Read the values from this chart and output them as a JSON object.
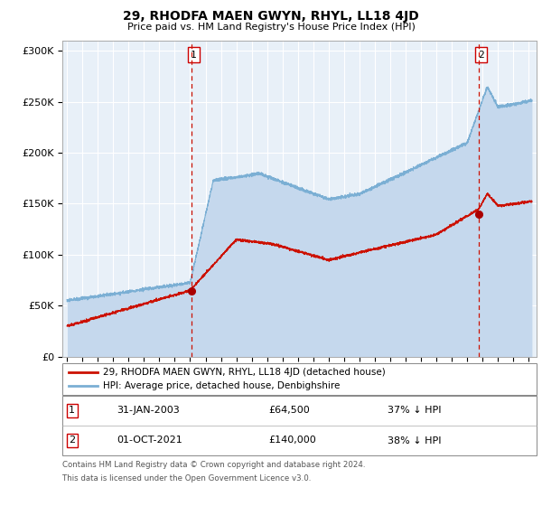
{
  "title": "29, RHODFA MAEN GWYN, RHYL, LL18 4JD",
  "subtitle": "Price paid vs. HM Land Registry's House Price Index (HPI)",
  "bg_color": "#e8f0f8",
  "outer_bg_color": "#ffffff",
  "hpi_color": "#7bafd4",
  "hpi_fill_color": "#c5d8ed",
  "price_color": "#cc1100",
  "marker_color": "#aa0000",
  "vline_color": "#cc1100",
  "ylim": [
    0,
    310000
  ],
  "yticks": [
    0,
    50000,
    100000,
    150000,
    200000,
    250000,
    300000
  ],
  "ytick_labels": [
    "£0",
    "£50K",
    "£100K",
    "£150K",
    "£200K",
    "£250K",
    "£300K"
  ],
  "sale1_date_num": 2003.08,
  "sale1_price": 64500,
  "sale1_label": "1",
  "sale2_date_num": 2021.75,
  "sale2_price": 140000,
  "sale2_label": "2",
  "legend_line1": "29, RHODFA MAEN GWYN, RHYL, LL18 4JD (detached house)",
  "legend_line2": "HPI: Average price, detached house, Denbighshire",
  "table_row1": [
    "1",
    "31-JAN-2003",
    "£64,500",
    "37% ↓ HPI"
  ],
  "table_row2": [
    "2",
    "01-OCT-2021",
    "£140,000",
    "38% ↓ HPI"
  ],
  "footnote1": "Contains HM Land Registry data © Crown copyright and database right 2024.",
  "footnote2": "This data is licensed under the Open Government Licence v3.0.",
  "xmin": 1994.7,
  "xmax": 2025.5
}
